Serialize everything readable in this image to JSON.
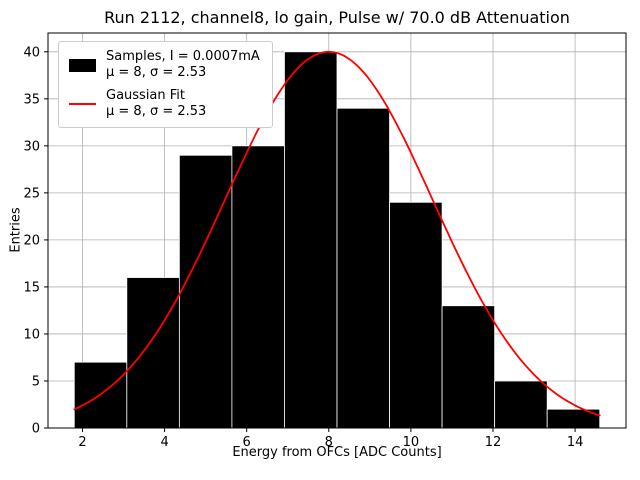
{
  "chart_data": {
    "type": "histogram",
    "title": "Run 2112, channel8, lo gain, Pulse w/ 70.0 dB Attenuation",
    "xlabel": "Energy from OFCs [ADC Counts]",
    "ylabel": "Entries",
    "xlim": [
      1.16,
      15.24
    ],
    "ylim": [
      0,
      42
    ],
    "xticks": [
      2,
      4,
      6,
      8,
      10,
      12,
      14
    ],
    "yticks": [
      0,
      5,
      10,
      15,
      20,
      25,
      30,
      35,
      40
    ],
    "bin_edges": [
      1.8,
      3.08,
      4.36,
      5.64,
      6.92,
      8.2,
      9.48,
      10.76,
      12.04,
      13.32,
      14.6
    ],
    "counts": [
      7,
      16,
      29,
      30,
      40,
      34,
      24,
      13,
      5,
      2
    ],
    "gaussian": {
      "mu": 8,
      "sigma": 2.53,
      "amplitude": 40,
      "x_range": [
        1.8,
        14.6
      ]
    },
    "grid": true,
    "colors": {
      "bar": "#000000",
      "bar_edge": "#ffffff",
      "fit": "#ff0000",
      "grid": "#b0b0b0",
      "axis": "#000000"
    },
    "legend": {
      "position": "upper-left",
      "entries": [
        {
          "label": "Samples, I = 0.0007mA",
          "stats": "μ = 8, σ = 2.53",
          "marker": "patch",
          "color": "#000000"
        },
        {
          "label": "Gaussian Fit",
          "stats": "μ = 8, σ = 2.53",
          "marker": "line",
          "color": "#ff0000"
        }
      ]
    }
  }
}
